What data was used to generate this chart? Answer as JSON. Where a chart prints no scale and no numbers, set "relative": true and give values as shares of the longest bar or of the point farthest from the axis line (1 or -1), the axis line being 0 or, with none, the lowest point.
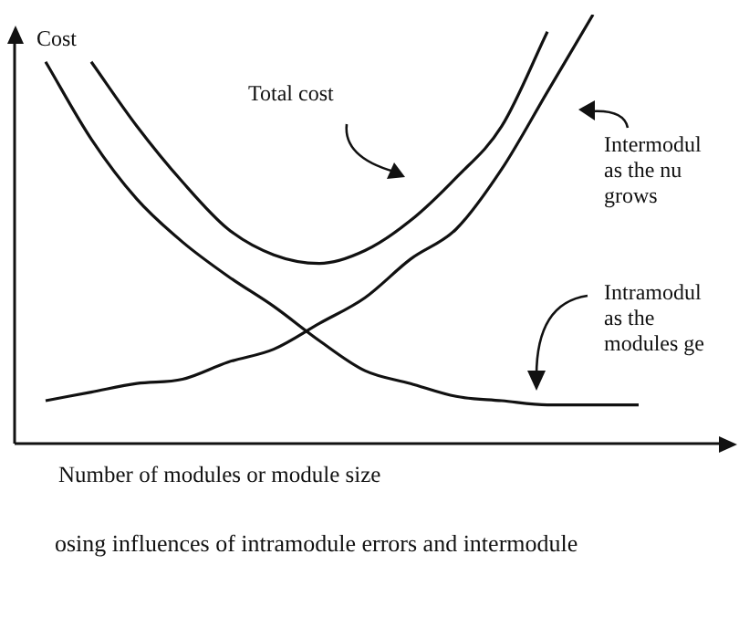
{
  "chart_data": {
    "type": "line",
    "relative": true,
    "xlabel": "Number of modules or module size",
    "ylabel": "Cost",
    "marker": "none",
    "line_style": "solid",
    "categories": [
      null,
      null,
      null,
      null,
      null,
      null,
      null,
      null,
      null,
      null,
      null,
      null,
      null,
      null,
      null
    ],
    "series": [
      {
        "color": "#111111",
        "values": [
          0.89,
          0.71,
          0.57,
          0.47,
          0.39,
          0.32,
          0.24,
          0.17,
          0.14,
          0.11,
          0.1,
          0.09,
          0.09,
          0.09,
          null
        ]
      },
      {
        "color": "#111111",
        "values": [
          0.1,
          0.12,
          0.14,
          0.15,
          0.19,
          0.22,
          0.28,
          0.34,
          0.43,
          0.5,
          0.64,
          0.82,
          1,
          null,
          null
        ]
      },
      {
        "color": "#111111",
        "values": [
          null,
          0.89,
          0.74,
          0.61,
          0.5,
          0.44,
          0.42,
          0.45,
          0.52,
          0.62,
          0.74,
          0.96,
          null,
          null,
          null
        ]
      }
    ],
    "annotations": [
      "Total cost",
      "Intermodul\nas the nu\ngrows",
      "Intramodul\nas the\nmodules ge",
      "osing influences of intramodule errors and intermodule"
    ]
  }
}
